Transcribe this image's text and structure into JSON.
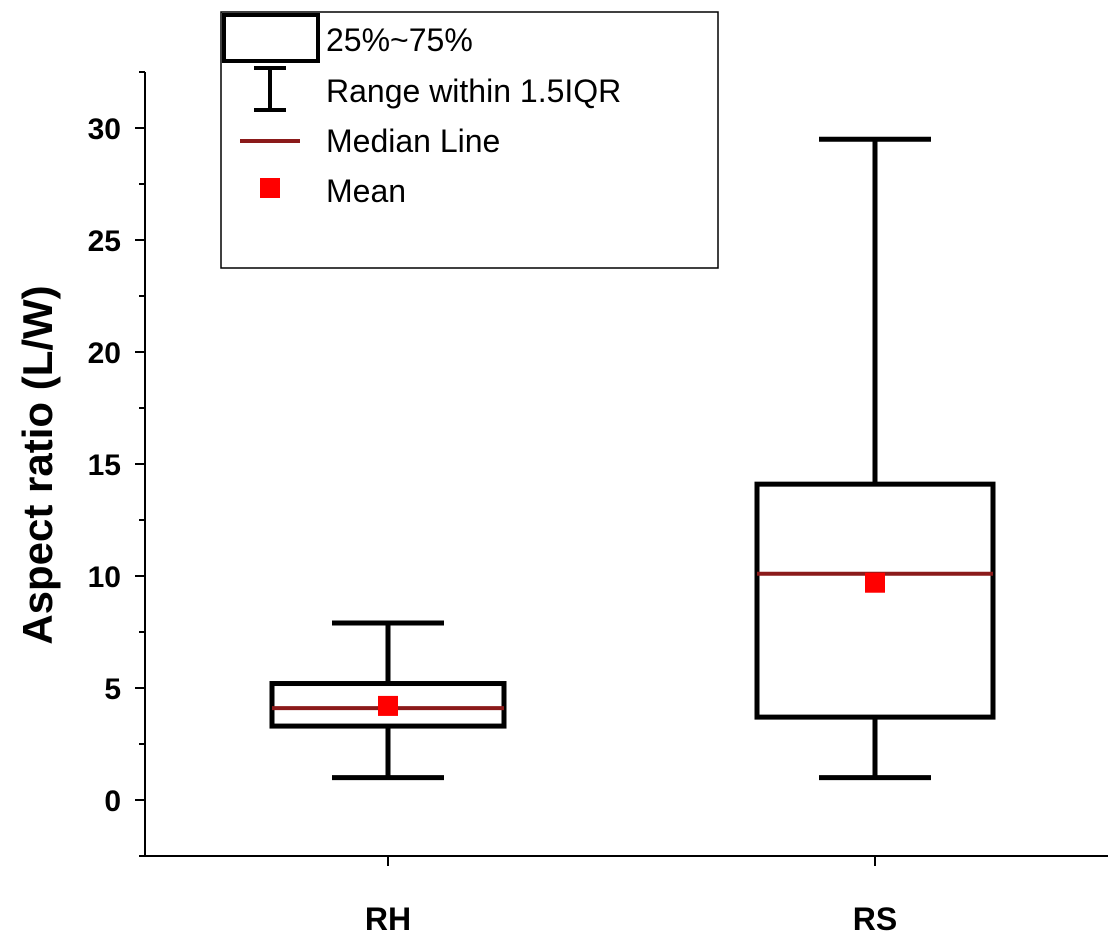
{
  "chart_data": {
    "type": "box",
    "title": "",
    "xlabel": "",
    "ylabel": "Aspect ratio (L/W)",
    "ylim": [
      -2.5,
      32.5
    ],
    "yticks": [
      0,
      5,
      10,
      15,
      20,
      25,
      30
    ],
    "grid": false,
    "legend_position": "top-left",
    "legend": {
      "box": "25%~75%",
      "whisker": "Range within 1.5IQR",
      "median": "Median Line",
      "mean": "Mean"
    },
    "colors": {
      "median": "#8b1a1a",
      "mean": "#ff0000",
      "box": "#000000"
    },
    "categories": [
      "RH",
      "RS"
    ],
    "series": [
      {
        "category": "RH",
        "whisker_low": 1.0,
        "q1": 3.3,
        "median": 4.1,
        "q3": 5.2,
        "whisker_high": 7.9,
        "mean": 4.2
      },
      {
        "category": "RS",
        "whisker_low": 1.0,
        "q1": 3.7,
        "median": 10.1,
        "q3": 14.1,
        "whisker_high": 29.5,
        "mean": 9.7
      }
    ]
  }
}
